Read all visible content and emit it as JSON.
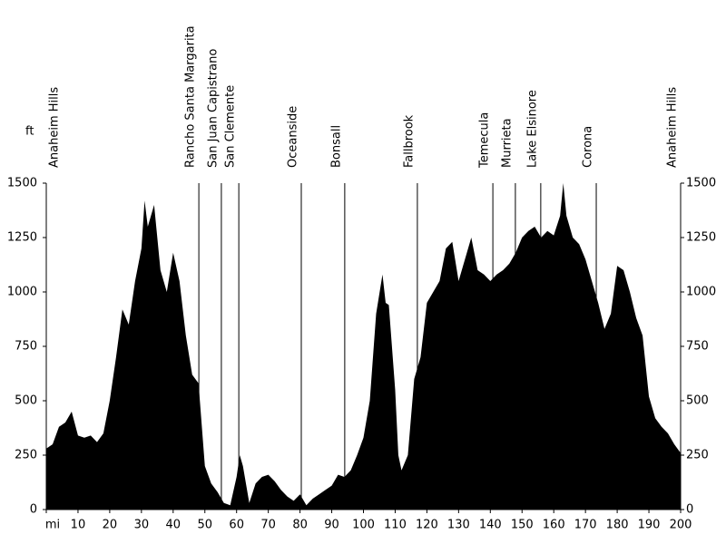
{
  "chart_data": {
    "type": "area",
    "ylabel": "ft",
    "color": "#000000",
    "x": [
      0,
      2,
      4,
      6,
      8,
      10,
      12,
      14,
      16,
      18,
      20,
      22,
      24,
      26,
      28,
      30,
      31,
      32,
      34,
      36,
      38,
      40,
      42,
      44,
      46,
      48,
      50,
      52,
      54,
      56,
      58,
      60,
      61,
      62,
      64,
      66,
      68,
      70,
      72,
      74,
      76,
      78,
      80,
      82,
      84,
      86,
      88,
      90,
      92,
      94,
      96,
      98,
      100,
      102,
      104,
      106,
      107,
      108,
      110,
      111,
      112,
      114,
      116,
      118,
      120,
      122,
      124,
      126,
      128,
      130,
      132,
      134,
      136,
      138,
      140,
      142,
      144,
      146,
      148,
      150,
      152,
      154,
      156,
      158,
      160,
      162,
      163,
      164,
      166,
      168,
      170,
      172,
      174,
      176,
      178,
      180,
      182,
      184,
      186,
      188,
      190,
      192,
      194,
      196,
      198,
      200
    ],
    "values": [
      280,
      300,
      380,
      400,
      450,
      340,
      330,
      340,
      310,
      350,
      500,
      700,
      920,
      850,
      1050,
      1200,
      1420,
      1300,
      1400,
      1100,
      1000,
      1180,
      1050,
      800,
      620,
      580,
      200,
      120,
      80,
      30,
      20,
      150,
      250,
      200,
      30,
      120,
      150,
      160,
      130,
      90,
      60,
      40,
      70,
      20,
      50,
      70,
      90,
      110,
      160,
      150,
      180,
      250,
      330,
      500,
      900,
      1080,
      950,
      940,
      550,
      250,
      180,
      250,
      600,
      700,
      950,
      1000,
      1050,
      1200,
      1230,
      1050,
      1150,
      1250,
      1100,
      1080,
      1050,
      1080,
      1100,
      1130,
      1180,
      1250,
      1280,
      1300,
      1250,
      1280,
      1260,
      1350,
      1500,
      1350,
      1250,
      1220,
      1150,
      1050,
      950,
      830,
      900,
      1120,
      1100,
      1000,
      880,
      800,
      520,
      420,
      380,
      350,
      300,
      260
    ],
    "xlim": [
      0,
      200
    ],
    "xticks": [
      {
        "value": 0,
        "label": "mi"
      },
      10,
      20,
      30,
      40,
      50,
      60,
      70,
      80,
      90,
      100,
      110,
      120,
      130,
      140,
      150,
      160,
      170,
      180,
      190,
      200
    ],
    "ylim": [
      0,
      1500
    ],
    "yticks": [
      0,
      250,
      500,
      750,
      1000,
      1250,
      1500
    ],
    "locations": [
      {
        "name": "Anaheim Hills",
        "mile": 0
      },
      {
        "name": "Rancho Santa Margarita",
        "mile": 48.1
      },
      {
        "name": "San Juan Capistrano",
        "mile": 55.2
      },
      {
        "name": "San Clemente",
        "mile": 60.7
      },
      {
        "name": "Oceanside",
        "mile": 80.4
      },
      {
        "name": "Bonsall",
        "mile": 94.1
      },
      {
        "name": "Fallbrook",
        "mile": 117
      },
      {
        "name": "Temecula",
        "mile": 140.8
      },
      {
        "name": "Murrieta",
        "mile": 147.9
      },
      {
        "name": "Lake Elsinore",
        "mile": 155.9
      },
      {
        "name": "Corona",
        "mile": 173.4
      },
      {
        "name": "Anaheim Hills",
        "mile": 200
      }
    ]
  }
}
